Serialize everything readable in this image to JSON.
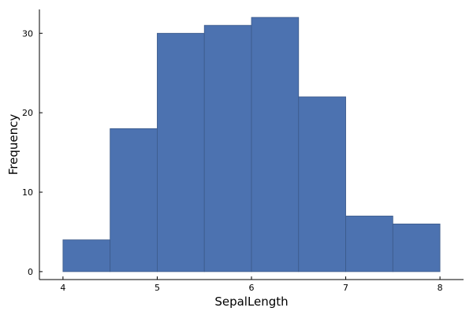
{
  "chart_data": {
    "type": "bar",
    "title": "",
    "xlabel": "SepalLength",
    "ylabel": "Frequency",
    "bin_edges": [
      4.0,
      4.5,
      5.0,
      5.5,
      6.0,
      6.5,
      7.0,
      7.5,
      8.0
    ],
    "values": [
      4,
      18,
      30,
      31,
      32,
      22,
      7,
      6
    ],
    "xlim": [
      3.75,
      8.25
    ],
    "ylim": [
      -1,
      33
    ],
    "x_ticks": [
      4,
      5,
      6,
      7,
      8
    ],
    "x_tick_labels": [
      "4",
      "5",
      "6",
      "7",
      "8"
    ],
    "y_ticks": [
      0,
      10,
      20,
      30
    ],
    "y_tick_labels": [
      "0",
      "10",
      "20",
      "30"
    ],
    "bar_color": "#4c72b0",
    "grid": false,
    "legend": "none"
  }
}
